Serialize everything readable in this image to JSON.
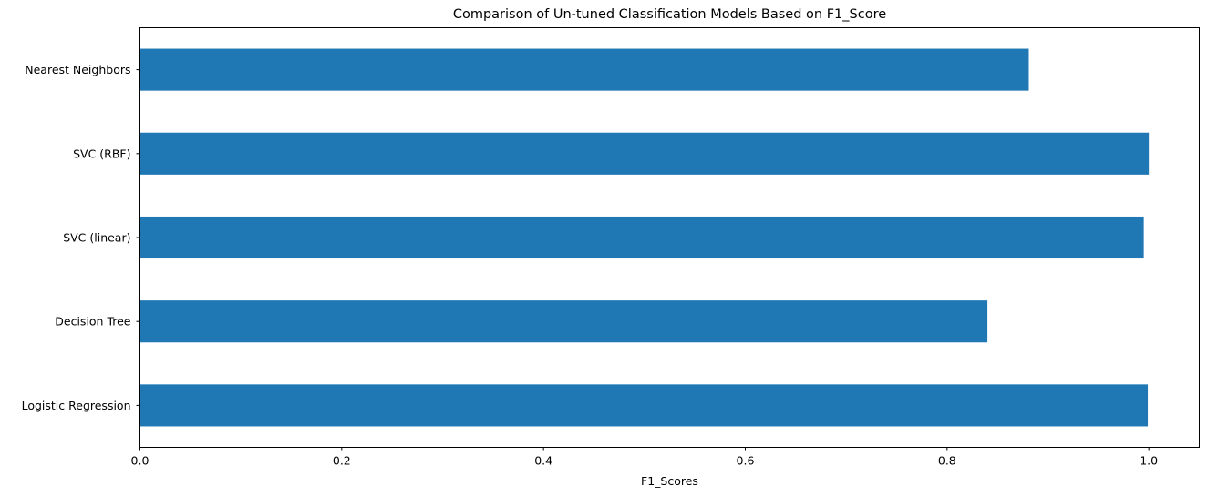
{
  "chart_data": {
    "type": "bar",
    "orientation": "horizontal",
    "title": "Comparison of Un-tuned Classification Models Based on F1_Score",
    "xlabel": "F1_Scores",
    "ylabel": "",
    "categories": [
      "Logistic Regression",
      "Decision Tree",
      "SVC (linear)",
      "SVC (RBF)",
      "Nearest Neighbors"
    ],
    "values": [
      0.999,
      0.84,
      0.995,
      1.0,
      0.881
    ],
    "xlim": [
      0.0,
      1.05
    ],
    "xticks": [
      0.0,
      0.2,
      0.4,
      0.6,
      0.8,
      1.0
    ],
    "xtick_labels": [
      "0.0",
      "0.2",
      "0.4",
      "0.6",
      "0.8",
      "1.0"
    ],
    "bar_color": "#1f77b4",
    "grid": false,
    "legend": "none"
  }
}
